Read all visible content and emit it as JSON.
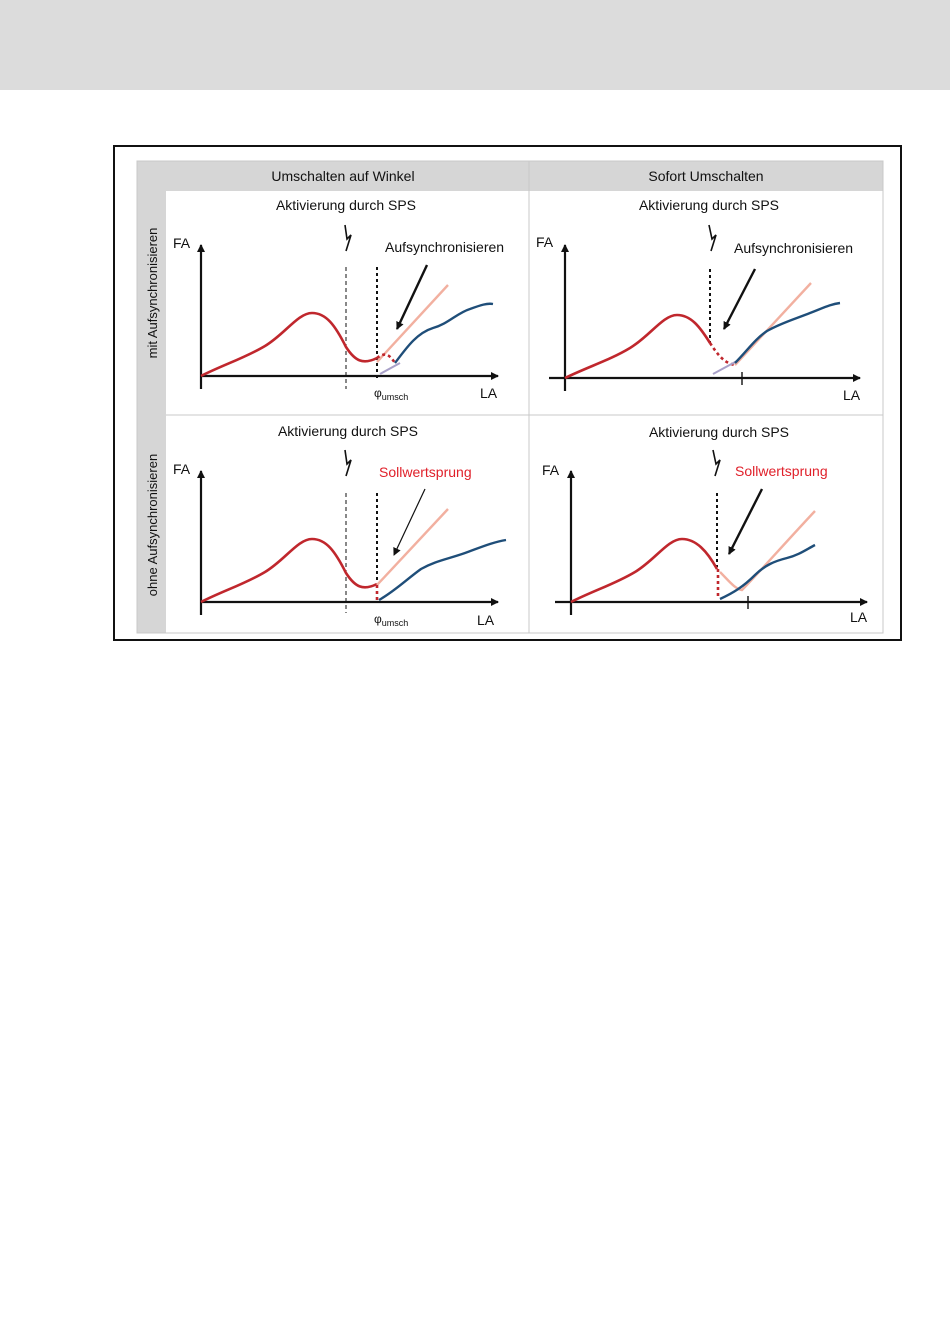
{
  "columns": [
    "Umschalten auf Winkel",
    "Sofort Umschalten"
  ],
  "rows": [
    "mit Aufsynchronisieren",
    "ohne Aufsynchronisieren"
  ],
  "panels": [
    {
      "activation": "Aktivierung durch SPS",
      "annotation": "Aufsynchronisieren",
      "y_axis": "FA",
      "x_axis": "LA",
      "phi_symbol": "φ",
      "phi_subscript": "umsch"
    },
    {
      "activation": "Aktivierung durch SPS",
      "annotation": "Aufsynchronisieren",
      "y_axis": "FA",
      "x_axis": "LA"
    },
    {
      "activation": "Aktivierung durch SPS",
      "annotation": "Sollwertsprung",
      "y_axis": "FA",
      "x_axis": "LA",
      "phi_symbol": "φ",
      "phi_subscript": "umsch"
    },
    {
      "activation": "Aktivierung durch SPS",
      "annotation": "Sollwertsprung",
      "y_axis": "FA",
      "x_axis": "LA"
    }
  ],
  "colors": {
    "leading_curve": "#c0272d",
    "target_line": "#f2b0a0",
    "following_curve": "#1f4e79",
    "sync_segment": "#a8a0c8",
    "cell_grey": "#d6d6d6",
    "annotation_red": "#e0202a",
    "annotation_black": "#111111",
    "bolt": "#111111"
  }
}
